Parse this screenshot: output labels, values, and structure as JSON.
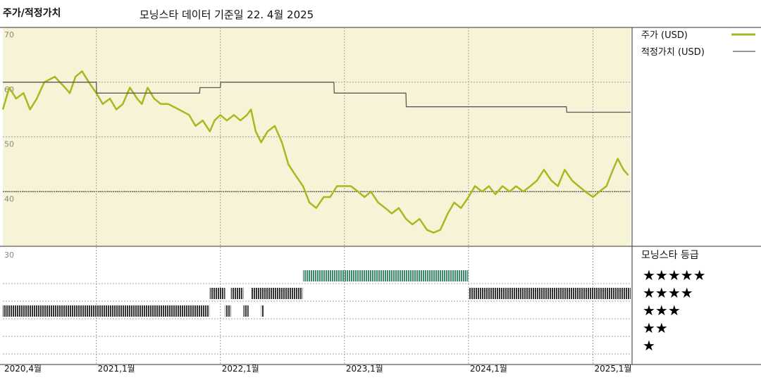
{
  "header": {
    "left_title": "주가/적정가치",
    "center_title": "모닝스타 데이터 기준일 22. 4월 2025"
  },
  "colors": {
    "plot_bg": "#f7f3d6",
    "price_line": "#a8b820",
    "fair_value_line": "#5a5a5a",
    "star5_band": "#3a8a6a",
    "star_band_dark": "#333333",
    "grid": "#a0a0a0"
  },
  "chart_data": {
    "type": "line",
    "y_axis": {
      "min": 30,
      "max": 70,
      "ticks": [
        70,
        60,
        50,
        40,
        30
      ]
    },
    "x_axis": {
      "start": "2020-04",
      "end": "2025-04",
      "ticks": [
        {
          "date": "2020-04",
          "label": "2020,4월"
        },
        {
          "date": "2021-01",
          "label": "2021,1월"
        },
        {
          "date": "2022-01",
          "label": "2022,1월"
        },
        {
          "date": "2023-01",
          "label": "2023,1월"
        },
        {
          "date": "2024-01",
          "label": "2024,1월"
        },
        {
          "date": "2025-01",
          "label": "2025,1월"
        }
      ]
    },
    "grid": true,
    "legend": {
      "placement": "right",
      "entries": [
        "주가 (USD)",
        "적정가치 (USD)"
      ],
      "rating_title": "모닝스타 등급",
      "rating_levels": [
        "★★★★★",
        "★★★★",
        "★★★",
        "★★",
        "★"
      ]
    },
    "series": [
      {
        "name": "주가 (USD)",
        "points": [
          [
            "2020-04-01",
            55
          ],
          [
            "2020-04-20",
            59
          ],
          [
            "2020-05-10",
            57
          ],
          [
            "2020-06-01",
            58
          ],
          [
            "2020-06-20",
            55
          ],
          [
            "2020-07-10",
            57
          ],
          [
            "2020-08-01",
            60
          ],
          [
            "2020-09-01",
            61
          ],
          [
            "2020-10-01",
            59
          ],
          [
            "2020-10-15",
            58
          ],
          [
            "2020-11-01",
            61
          ],
          [
            "2020-11-20",
            62
          ],
          [
            "2020-12-10",
            60
          ],
          [
            "2021-01-01",
            58
          ],
          [
            "2021-01-20",
            56
          ],
          [
            "2021-02-10",
            57
          ],
          [
            "2021-03-01",
            55
          ],
          [
            "2021-03-20",
            56
          ],
          [
            "2021-04-10",
            59
          ],
          [
            "2021-05-01",
            57
          ],
          [
            "2021-05-15",
            56
          ],
          [
            "2021-06-01",
            59
          ],
          [
            "2021-06-20",
            57
          ],
          [
            "2021-07-10",
            56
          ],
          [
            "2021-08-01",
            56
          ],
          [
            "2021-09-01",
            55
          ],
          [
            "2021-10-01",
            54
          ],
          [
            "2021-10-20",
            52
          ],
          [
            "2021-11-10",
            53
          ],
          [
            "2021-12-01",
            51
          ],
          [
            "2021-12-15",
            53
          ],
          [
            "2022-01-01",
            54
          ],
          [
            "2022-01-20",
            53
          ],
          [
            "2022-02-10",
            54
          ],
          [
            "2022-03-01",
            53
          ],
          [
            "2022-03-20",
            54
          ],
          [
            "2022-04-01",
            55
          ],
          [
            "2022-04-15",
            51
          ],
          [
            "2022-05-01",
            49
          ],
          [
            "2022-05-20",
            51
          ],
          [
            "2022-06-10",
            52
          ],
          [
            "2022-07-01",
            49
          ],
          [
            "2022-07-20",
            45
          ],
          [
            "2022-08-10",
            43
          ],
          [
            "2022-09-01",
            41
          ],
          [
            "2022-09-20",
            38
          ],
          [
            "2022-10-10",
            37
          ],
          [
            "2022-11-01",
            39
          ],
          [
            "2022-11-20",
            39
          ],
          [
            "2022-12-10",
            41
          ],
          [
            "2023-01-01",
            41
          ],
          [
            "2023-01-20",
            41
          ],
          [
            "2023-02-10",
            40
          ],
          [
            "2023-03-01",
            39
          ],
          [
            "2023-03-20",
            40
          ],
          [
            "2023-04-10",
            38
          ],
          [
            "2023-05-01",
            37
          ],
          [
            "2023-05-20",
            36
          ],
          [
            "2023-06-10",
            37
          ],
          [
            "2023-07-01",
            35
          ],
          [
            "2023-07-20",
            34
          ],
          [
            "2023-08-10",
            35
          ],
          [
            "2023-09-01",
            33
          ],
          [
            "2023-09-20",
            32.5
          ],
          [
            "2023-10-10",
            33
          ],
          [
            "2023-11-01",
            36
          ],
          [
            "2023-11-20",
            38
          ],
          [
            "2023-12-10",
            37
          ],
          [
            "2024-01-01",
            39
          ],
          [
            "2024-01-20",
            41
          ],
          [
            "2024-02-10",
            40
          ],
          [
            "2024-03-01",
            41
          ],
          [
            "2024-03-20",
            39.5
          ],
          [
            "2024-04-10",
            41
          ],
          [
            "2024-05-01",
            40
          ],
          [
            "2024-05-20",
            41
          ],
          [
            "2024-06-10",
            40
          ],
          [
            "2024-07-01",
            41
          ],
          [
            "2024-07-20",
            42
          ],
          [
            "2024-08-10",
            44
          ],
          [
            "2024-09-01",
            42
          ],
          [
            "2024-09-20",
            41
          ],
          [
            "2024-10-10",
            44
          ],
          [
            "2024-11-01",
            42
          ],
          [
            "2024-11-20",
            41
          ],
          [
            "2024-12-10",
            40
          ],
          [
            "2025-01-01",
            39
          ],
          [
            "2025-01-20",
            40
          ],
          [
            "2025-02-10",
            41
          ],
          [
            "2025-03-01",
            44
          ],
          [
            "2025-03-15",
            46
          ],
          [
            "2025-04-01",
            44
          ],
          [
            "2025-04-15",
            43
          ]
        ]
      },
      {
        "name": "적정가치 (USD)",
        "points": [
          [
            "2020-04-01",
            60
          ],
          [
            "2021-01-01",
            60
          ],
          [
            "2021-01-02",
            58
          ],
          [
            "2021-11-01",
            58
          ],
          [
            "2021-11-02",
            59
          ],
          [
            "2022-01-01",
            59
          ],
          [
            "2022-01-02",
            60
          ],
          [
            "2022-12-01",
            60
          ],
          [
            "2022-12-02",
            58
          ],
          [
            "2023-07-01",
            58
          ],
          [
            "2023-07-02",
            55.5
          ],
          [
            "2024-10-15",
            55.5
          ],
          [
            "2024-10-16",
            54.5
          ],
          [
            "2025-04-22",
            54.5
          ]
        ]
      }
    ],
    "rating_bands": [
      {
        "stars": 3,
        "start": "2020-04-01",
        "end": "2021-11-30"
      },
      {
        "stars": 4,
        "start": "2021-12-01",
        "end": "2022-01-15"
      },
      {
        "stars": 3,
        "start": "2022-01-15",
        "end": "2022-02-01"
      },
      {
        "stars": 4,
        "start": "2022-02-01",
        "end": "2022-03-10"
      },
      {
        "stars": 3,
        "start": "2022-03-10",
        "end": "2022-03-25"
      },
      {
        "stars": 4,
        "start": "2022-04-01",
        "end": "2022-08-31"
      },
      {
        "stars": 3,
        "start": "2022-05-01",
        "end": "2022-05-08"
      },
      {
        "stars": 5,
        "start": "2022-09-01",
        "end": "2023-12-31"
      },
      {
        "stars": 4,
        "start": "2024-01-01",
        "end": "2025-04-22"
      }
    ]
  }
}
